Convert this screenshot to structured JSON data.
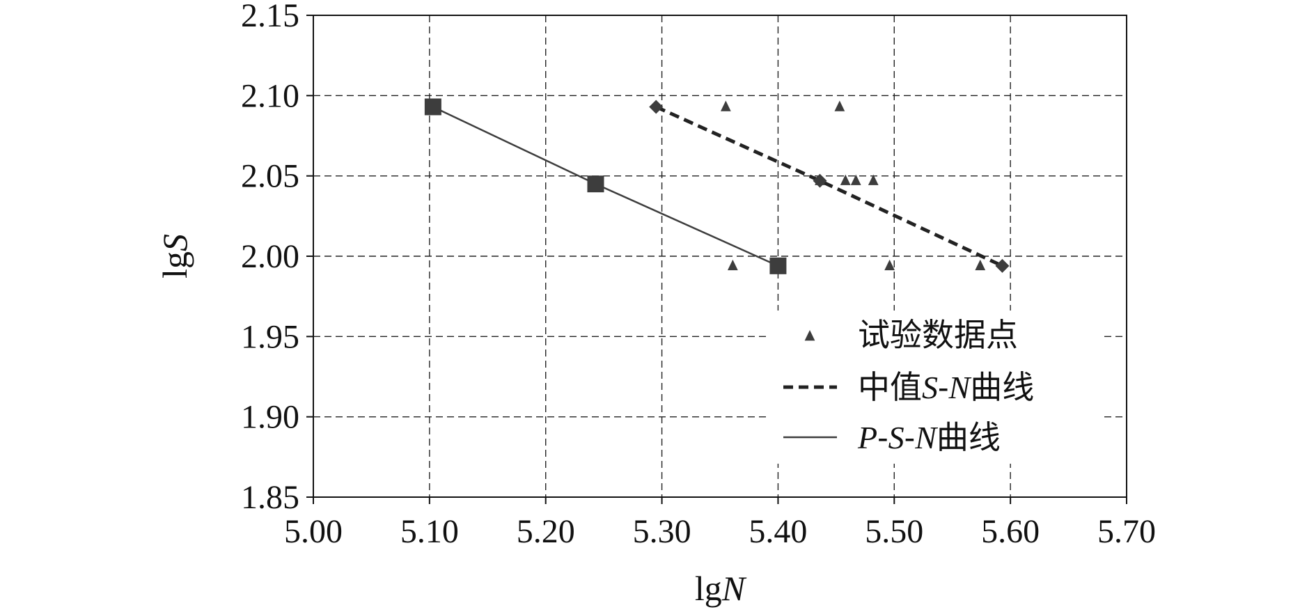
{
  "chart_data": {
    "type": "scatter",
    "title": "",
    "xlabel": "lgN",
    "ylabel": "lgS",
    "xlim": [
      5.0,
      5.7
    ],
    "ylim": [
      1.85,
      2.15
    ],
    "x_ticks": [
      "5.00",
      "5.10",
      "5.20",
      "5.30",
      "5.40",
      "5.50",
      "5.60",
      "5.70"
    ],
    "y_ticks": [
      "2.15",
      "2.10",
      "2.05",
      "2.00",
      "1.95",
      "1.90",
      "1.85"
    ],
    "grid": true,
    "legend_position": "lower-right",
    "series": [
      {
        "name": "试验数据点",
        "kind": "triangle-markers",
        "points": [
          [
            5.355,
            2.093
          ],
          [
            5.453,
            2.093
          ],
          [
            5.436,
            2.047
          ],
          [
            5.458,
            2.047
          ],
          [
            5.467,
            2.047
          ],
          [
            5.482,
            2.047
          ],
          [
            5.361,
            1.994
          ],
          [
            5.496,
            1.994
          ],
          [
            5.574,
            1.994
          ]
        ]
      },
      {
        "name": "中值S-N曲线",
        "kind": "dashed-line",
        "points": [
          [
            5.295,
            2.093
          ],
          [
            5.436,
            2.047
          ],
          [
            5.593,
            1.994
          ]
        ]
      },
      {
        "name": "P-S-N曲线",
        "kind": "solid-line",
        "points": [
          [
            5.103,
            2.093
          ],
          [
            5.243,
            2.045
          ],
          [
            5.4,
            1.994
          ]
        ]
      }
    ]
  },
  "colors": {
    "marker": "#3d3d3d",
    "line": "#3d3d3d",
    "grid": "#222222",
    "axis": "#111111"
  }
}
